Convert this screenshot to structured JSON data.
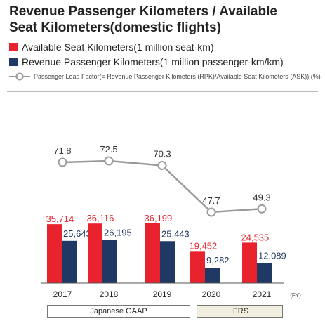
{
  "title_line1": "Revenue Passenger Kilometers / Available",
  "title_line2": "Seat Kilometers(domestic flights)",
  "legend": {
    "ask_label": "Available Seat Kilometers(1 million seat-km)",
    "rpk_label": "Revenue Passenger Kilometers(1 million passenger-km/km)",
    "lf_label": "Passenger Load Factor(= Revenue Passenger Kilometers (RPK)/Available Seat Kilometers (ASK)) (%)"
  },
  "unit_fy": "(FY)",
  "standards": {
    "gaap": "Japanese GAAP",
    "ifrs": "IFRS"
  },
  "colors": {
    "ask": "#e8232d",
    "rpk": "#1f3864",
    "line": "#9a9a9a",
    "ifrs_bg": "#f2efe0"
  },
  "chart_data": {
    "type": "bar",
    "categories": [
      "2017",
      "2018",
      "2019",
      "2020",
      "2021"
    ],
    "series": [
      {
        "name": "Available Seat Kilometers(1 million seat-km)",
        "values": [
          35714,
          36116,
          36199,
          19452,
          24535
        ],
        "labels": [
          "35,714",
          "36,116",
          "36,199",
          "19,452",
          "24,535"
        ]
      },
      {
        "name": "Revenue Passenger Kilometers(1 million passenger-km/km)",
        "values": [
          25643,
          26195,
          25443,
          9282,
          12089
        ],
        "labels": [
          "25,643",
          "26,195",
          "25,443",
          "9,282",
          "12,089"
        ]
      }
    ],
    "line_series": {
      "name": "Passenger Load Factor(= Revenue Passenger Kilometers (RPK)/Available Seat Kilometers (ASK)) (%)",
      "values": [
        71.8,
        72.5,
        70.3,
        47.7,
        49.3
      ],
      "labels": [
        "71.8",
        "72.5",
        "70.3",
        "47.7",
        "49.3"
      ]
    },
    "xlabel": "",
    "ylabel": "",
    "ylim": [
      0,
      36199
    ]
  }
}
